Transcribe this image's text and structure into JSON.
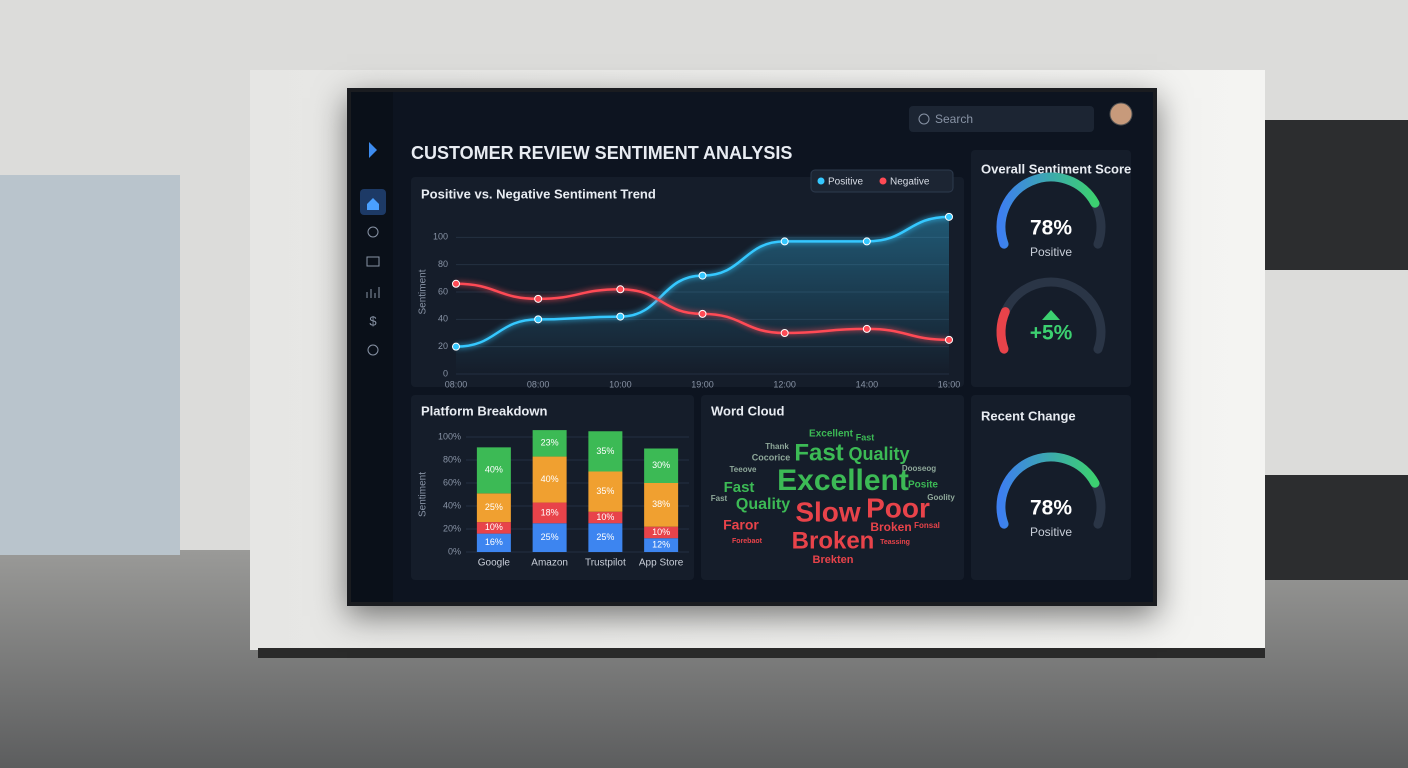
{
  "header": {
    "title": "CUSTOMER REVIEW SENTIMENT ANALYSIS",
    "search_placeholder": "Search"
  },
  "chart_data": [
    {
      "type": "line",
      "title": "Positive vs. Negative Sentiment Trend",
      "categories": [
        "08:00",
        "08:00",
        "10:00",
        "19:00",
        "12:00",
        "14:00",
        "16:00"
      ],
      "y_label": "Sentiment",
      "ylim": [
        0,
        120
      ],
      "yticks": [
        0,
        20,
        40,
        60,
        80,
        100
      ],
      "series": [
        {
          "name": "Positive",
          "color": "#35c8ff",
          "values": [
            20,
            40,
            42,
            72,
            97,
            97,
            115
          ]
        },
        {
          "name": "Negative",
          "color": "#ff4a55",
          "values": [
            66,
            55,
            62,
            44,
            30,
            33,
            25
          ]
        }
      ]
    },
    {
      "type": "bar",
      "stacked": true,
      "title": "Platform Breakdown",
      "categories": [
        "Google",
        "Amazon",
        "Trustpilot",
        "App Store"
      ],
      "y_label": "Sentiment",
      "ylim": [
        0,
        100
      ],
      "yticks": [
        {
          "value": 0,
          "label": "0%"
        },
        {
          "value": 20,
          "label": "20%"
        },
        {
          "value": 40,
          "label": "40%"
        },
        {
          "value": 60,
          "label": "60%"
        },
        {
          "value": 80,
          "label": "80%"
        },
        {
          "value": 100,
          "label": "100%"
        }
      ],
      "series": [
        {
          "color": "#3d85f0",
          "values": [
            16,
            25,
            25,
            12
          ],
          "value_labels": [
            "16%",
            "25%",
            "25%",
            "12%"
          ]
        },
        {
          "color": "#e8434a",
          "values": [
            10,
            18,
            10,
            10
          ],
          "value_labels": [
            "10%",
            "18%",
            "10%",
            "10%"
          ]
        },
        {
          "color": "#f0a030",
          "values": [
            25,
            40,
            35,
            38
          ],
          "value_labels": [
            "25%",
            "40%",
            "35%",
            "38%"
          ]
        },
        {
          "color": "#3cba55",
          "values": [
            40,
            23,
            35,
            30
          ],
          "value_labels": [
            "40%",
            "23%",
            "35%",
            "30%"
          ]
        }
      ]
    },
    {
      "type": "gauge",
      "title": "Overall Sentiment Score",
      "value": 78,
      "value_label": "78%",
      "label": "Positive",
      "range": [
        0,
        100
      ],
      "color": "#3cd070"
    },
    {
      "type": "gauge",
      "value": 5,
      "value_label": "+5%",
      "range": [
        0,
        25
      ],
      "color": "#e8434a"
    },
    {
      "type": "gauge",
      "title": "Recent Change",
      "value": 78,
      "value_label": "78%",
      "label": "Positive",
      "range": [
        0,
        100
      ],
      "color": "#3cd070"
    }
  ],
  "word_cloud": {
    "title": "Word Cloud",
    "words": [
      {
        "text": "Excellent",
        "color": "#3cba55"
      },
      {
        "text": "Fast",
        "color": "#3cba55"
      },
      {
        "text": "Thank",
        "color": "#8fa89a"
      },
      {
        "text": "Fast",
        "color": "#3cba55"
      },
      {
        "text": "Quality",
        "color": "#3cba55"
      },
      {
        "text": "Cocorice",
        "color": "#8fa89a"
      },
      {
        "text": "Teeove",
        "color": "#8fa89a"
      },
      {
        "text": "Dooseog",
        "color": "#8fa89a"
      },
      {
        "text": "Fast",
        "color": "#3cba55"
      },
      {
        "text": "Excellent",
        "color": "#3cba55"
      },
      {
        "text": "Posite",
        "color": "#3cba55"
      },
      {
        "text": "Fast",
        "color": "#8fa89a"
      },
      {
        "text": "Quality",
        "color": "#3cba55"
      },
      {
        "text": "Slow",
        "color": "#e8434a"
      },
      {
        "text": "Poor",
        "color": "#e8434a"
      },
      {
        "text": "Goolity",
        "color": "#8fa89a"
      },
      {
        "text": "Broken",
        "color": "#e8434a"
      },
      {
        "text": "Faror",
        "color": "#e8434a"
      },
      {
        "text": "Fonsal",
        "color": "#e8434a"
      },
      {
        "text": "Forebaot",
        "color": "#e8434a"
      },
      {
        "text": "Broken",
        "color": "#e8434a"
      },
      {
        "text": "Teassing",
        "color": "#e8434a"
      },
      {
        "text": "Brekten",
        "color": "#e8434a"
      }
    ]
  }
}
